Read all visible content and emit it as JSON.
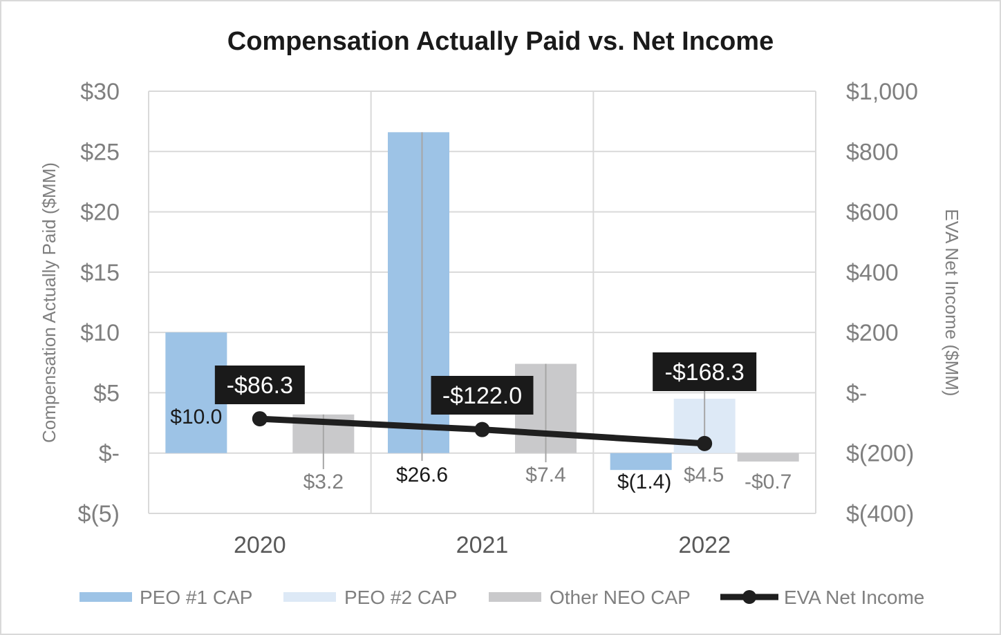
{
  "chart_data": {
    "type": "bar",
    "title": "Compensation Actually Paid vs. Net Income",
    "ylabel": "Compensation Actually Paid ($MM)",
    "y2label": "EVA Net Income ($MM)",
    "categories": [
      "2020",
      "2021",
      "2022"
    ],
    "ylim": [
      -5,
      30
    ],
    "y2lim": [
      -400,
      1000
    ],
    "yticks": [
      30,
      25,
      20,
      15,
      10,
      5,
      0,
      -5
    ],
    "ytick_labels": [
      "$30",
      "$25",
      "$20",
      "$15",
      "$10",
      "$5",
      "$-",
      "$(5)"
    ],
    "y2ticks": [
      1000,
      800,
      600,
      400,
      200,
      0,
      -200,
      -400
    ],
    "y2tick_labels": [
      "$1,000",
      "$800",
      "$600",
      "$400",
      "$200",
      "$-",
      "$(200)",
      "$(400)"
    ],
    "grid": true,
    "legend_position": "bottom",
    "series": [
      {
        "name": "PEO #1 CAP",
        "kind": "bar",
        "axis": "left",
        "color": "#9dc3e6",
        "values": [
          10.0,
          26.6,
          -1.4
        ],
        "labels": [
          "$10.0",
          "$26.6",
          "$(1.4)"
        ],
        "label_color": "#1a1a1a"
      },
      {
        "name": "PEO #2 CAP",
        "kind": "bar",
        "axis": "left",
        "color": "#dde9f6",
        "values": [
          null,
          null,
          4.5
        ],
        "labels": [
          "",
          "",
          "$4.5"
        ],
        "label_color": "#7f7f7f"
      },
      {
        "name": "Other NEO CAP",
        "kind": "bar",
        "axis": "left",
        "color": "#c9c9cb",
        "values": [
          3.2,
          7.4,
          -0.7
        ],
        "labels": [
          "$3.2",
          "$7.4",
          "-$0.7"
        ],
        "label_color": "#7f7f7f"
      },
      {
        "name": "EVA Net Income",
        "kind": "line",
        "axis": "right",
        "color": "#1f1f1f",
        "values": [
          -86.3,
          -122.0,
          -168.3
        ],
        "labels": [
          "-$86.3",
          "-$122.0",
          "-$168.3"
        ]
      }
    ]
  }
}
